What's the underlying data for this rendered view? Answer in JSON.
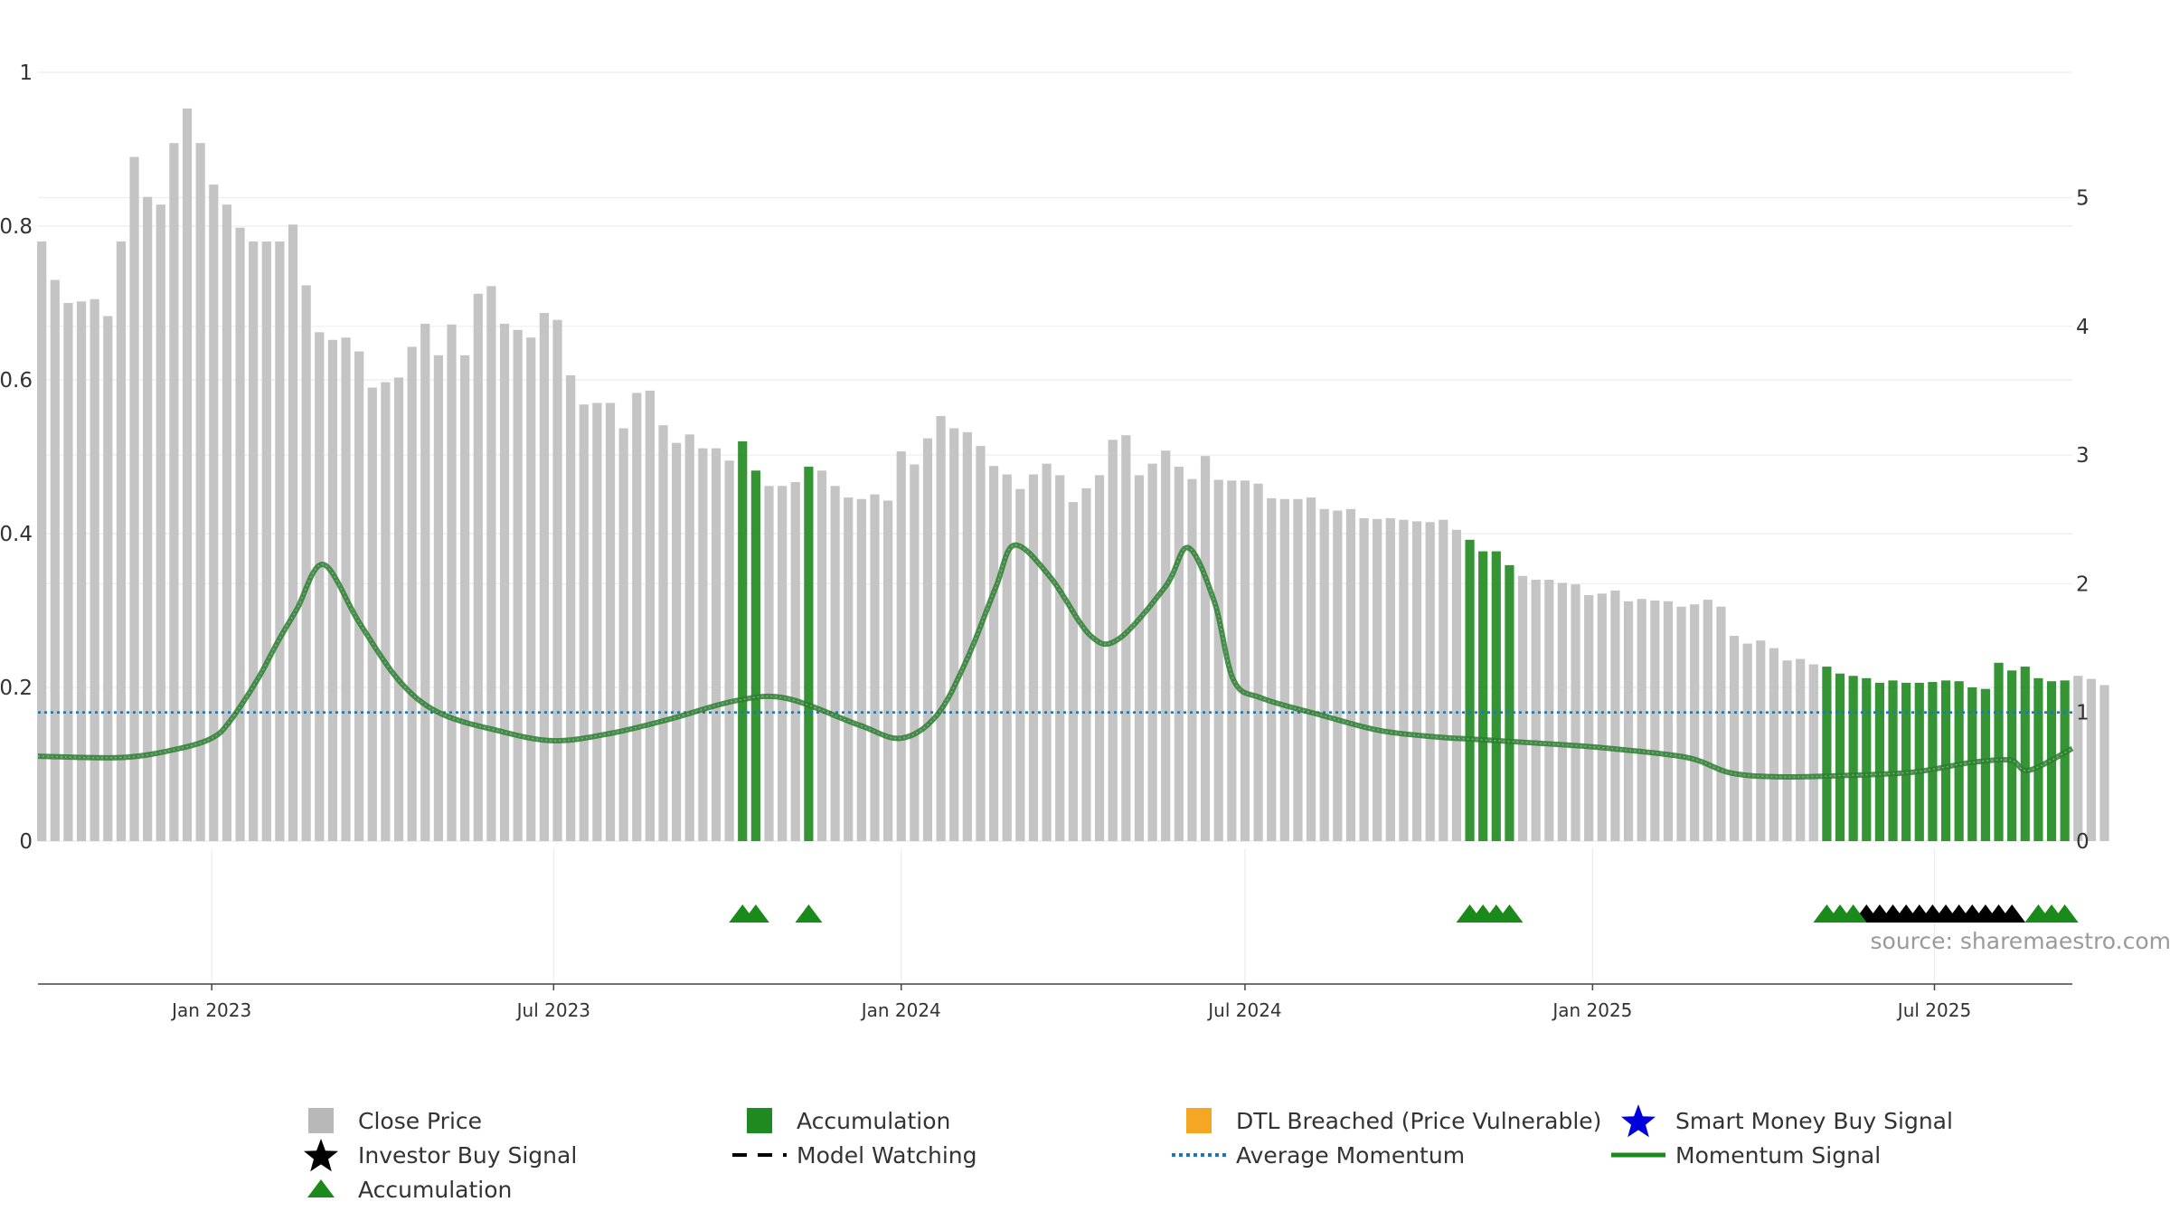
{
  "source_text": "source: sharemaestro.com",
  "colors": {
    "close_bar": "#c4c4c4",
    "accumulation_bar": "#1f8a1f",
    "momentum_line": "#2e7d32",
    "average_momentum": "#1f77b4",
    "accumulation_marker": "#1a8a1a",
    "investor_marker": "#000000",
    "dtl": "#f5a623",
    "smart_money": "#0000dd"
  },
  "chart_data": {
    "type": "bar",
    "left_axis": {
      "range": [
        0,
        1
      ],
      "ticks": [
        0,
        0.2,
        0.4,
        0.6,
        0.8,
        1
      ],
      "labels": [
        "0",
        "0.2",
        "0.4",
        "0.6",
        "0.8",
        "1"
      ]
    },
    "right_axis": {
      "range": [
        0,
        5.98
      ],
      "ticks": [
        0,
        1,
        2,
        3,
        4,
        5
      ],
      "labels": [
        "0",
        "1",
        "2",
        "3",
        "4",
        "5"
      ]
    },
    "x_axis": {
      "start": "2022-10-01",
      "end": "2025-09-12",
      "ticks": [
        "2023-01-01",
        "2023-07-01",
        "2024-01-01",
        "2024-07-01",
        "2025-01-01",
        "2025-07-01"
      ],
      "labels": [
        "Jan 2023",
        "Jul 2023",
        "Jan 2024",
        "Jul 2024",
        "Jan 2025",
        "Jul 2025"
      ]
    },
    "grid": true,
    "bar_start": "2022-10-03",
    "bar_interval_days": 7,
    "close_price": [
      0.78,
      0.73,
      0.7,
      0.702,
      0.705,
      0.683,
      0.78,
      0.89,
      0.838,
      0.828,
      0.908,
      0.953,
      0.908,
      0.854,
      0.828,
      0.798,
      0.78,
      0.78,
      0.78,
      0.802,
      0.723,
      0.662,
      0.652,
      0.655,
      0.637,
      0.59,
      0.597,
      0.603,
      0.643,
      0.673,
      0.632,
      0.672,
      0.632,
      0.712,
      0.722,
      0.673,
      0.665,
      0.655,
      0.687,
      0.678,
      0.606,
      0.568,
      0.57,
      0.57,
      0.537,
      0.583,
      0.586,
      0.541,
      0.518,
      0.529,
      0.511,
      0.511,
      0.495,
      0.52,
      0.482,
      0.462,
      0.462,
      0.467,
      0.487,
      0.482,
      0.462,
      0.447,
      0.445,
      0.451,
      0.443,
      0.507,
      0.49,
      0.524,
      0.553,
      0.537,
      0.532,
      0.514,
      0.488,
      0.477,
      0.458,
      0.477,
      0.491,
      0.476,
      0.441,
      0.459,
      0.476,
      0.522,
      0.528,
      0.476,
      0.491,
      0.508,
      0.487,
      0.471,
      0.501,
      0.47,
      0.469,
      0.469,
      0.465,
      0.446,
      0.445,
      0.445,
      0.447,
      0.432,
      0.43,
      0.432,
      0.42,
      0.419,
      0.42,
      0.418,
      0.416,
      0.415,
      0.418,
      0.405,
      0.392,
      0.377,
      0.377,
      0.359,
      0.345,
      0.34,
      0.34,
      0.336,
      0.334,
      0.32,
      0.322,
      0.326,
      0.312,
      0.315,
      0.313,
      0.312,
      0.305,
      0.308,
      0.314,
      0.305,
      0.267,
      0.257,
      0.261,
      0.251,
      0.235,
      0.237,
      0.23,
      0.227,
      0.218,
      0.215,
      0.212,
      0.206,
      0.209,
      0.206,
      0.206,
      0.207,
      0.209,
      0.208,
      0.2,
      0.198,
      0.232,
      0.222,
      0.227,
      0.212,
      0.208,
      0.209,
      0.215,
      0.211,
      0.203
    ],
    "accumulation_bars": [
      "2023-10-09",
      "2023-10-16",
      "2023-11-13",
      "2024-10-28",
      "2024-11-04",
      "2024-11-11",
      "2024-11-18",
      "2025-05-05",
      "2025-05-12",
      "2025-05-19",
      "2025-05-26",
      "2025-06-02",
      "2025-06-09",
      "2025-06-16",
      "2025-06-23",
      "2025-06-30",
      "2025-07-07",
      "2025-07-14",
      "2025-07-21",
      "2025-07-28",
      "2025-08-04",
      "2025-08-11",
      "2025-08-18",
      "2025-08-25",
      "2025-09-01",
      "2025-09-08"
    ],
    "momentum_signal": {
      "x": [
        "2022-10-01",
        "2022-11-15",
        "2022-12-15",
        "2023-01-01",
        "2023-01-10",
        "2023-01-25",
        "2023-02-05",
        "2023-02-15",
        "2023-03-01",
        "2023-03-20",
        "2023-04-10",
        "2023-05-01",
        "2023-06-01",
        "2023-07-01",
        "2023-08-01",
        "2023-09-01",
        "2023-10-05",
        "2023-11-01",
        "2023-12-10",
        "2024-01-01",
        "2024-01-20",
        "2024-02-05",
        "2024-02-20",
        "2024-03-01",
        "2024-03-20",
        "2024-04-10",
        "2024-04-25",
        "2024-05-20",
        "2024-06-01",
        "2024-06-15",
        "2024-06-25",
        "2024-07-10",
        "2024-08-10",
        "2024-09-10",
        "2024-10-10",
        "2024-11-01",
        "2024-12-15",
        "2025-01-10",
        "2025-02-20",
        "2025-03-15",
        "2025-04-10",
        "2025-05-15",
        "2025-06-15",
        "2025-07-01",
        "2025-07-20",
        "2025-08-10",
        "2025-08-20",
        "2025-09-12"
      ],
      "values": [
        0.66,
        0.65,
        0.72,
        0.8,
        0.92,
        1.25,
        1.55,
        1.8,
        2.15,
        1.7,
        1.25,
        1.0,
        0.86,
        0.78,
        0.84,
        0.95,
        1.09,
        1.11,
        0.9,
        0.8,
        0.98,
        1.42,
        1.97,
        2.3,
        2.05,
        1.6,
        1.57,
        1.98,
        2.28,
        1.85,
        1.25,
        1.11,
        0.98,
        0.86,
        0.81,
        0.79,
        0.75,
        0.72,
        0.65,
        0.53,
        0.5,
        0.51,
        0.53,
        0.56,
        0.61,
        0.63,
        0.55,
        0.72
      ]
    },
    "average_momentum": 1.0,
    "accumulation_markers": [
      "2023-10-09",
      "2023-10-16",
      "2023-11-13",
      "2024-10-28",
      "2024-11-04",
      "2024-11-11",
      "2024-11-18",
      "2025-05-05",
      "2025-05-12",
      "2025-05-19",
      "2025-08-25",
      "2025-09-01",
      "2025-09-08"
    ],
    "investor_buy_markers": [
      "2025-05-26",
      "2025-06-02",
      "2025-06-09",
      "2025-06-16",
      "2025-06-23",
      "2025-06-30",
      "2025-07-07",
      "2025-07-14",
      "2025-07-21",
      "2025-07-28",
      "2025-08-04",
      "2025-08-11"
    ],
    "legend": [
      {
        "label": "Close Price",
        "symbol": "square",
        "color": "#b8b8b8"
      },
      {
        "label": "Accumulation",
        "symbol": "square",
        "color": "#1f8a1f"
      },
      {
        "label": "DTL Breached (Price Vulnerable)",
        "symbol": "square",
        "color": "#f5a623"
      },
      {
        "label": "Smart Money Buy Signal",
        "symbol": "star",
        "color": "#0000dd"
      },
      {
        "label": "Investor Buy Signal",
        "symbol": "star",
        "color": "#000000"
      },
      {
        "label": "Model Watching",
        "symbol": "dash",
        "color": "#000000"
      },
      {
        "label": "Average Momentum",
        "symbol": "dots",
        "color": "#1f77b4"
      },
      {
        "label": "Momentum Signal",
        "symbol": "line",
        "color": "#1a8a1a"
      },
      {
        "label": "Accumulation",
        "symbol": "triangle",
        "color": "#1a8a1a"
      }
    ]
  }
}
